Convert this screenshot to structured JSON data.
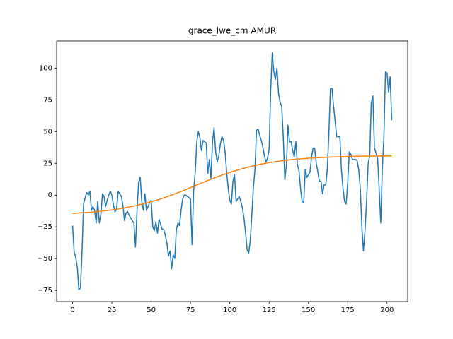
{
  "chart_data": {
    "type": "line",
    "title": "grace_lwe_cm AMUR",
    "xlim": [
      -10.15,
      213.15
    ],
    "ylim": [
      -83.8,
      121.3
    ],
    "xticks": [
      0,
      25,
      50,
      75,
      100,
      125,
      150,
      175,
      200
    ],
    "yticks": [
      {
        "value": -75,
        "label": "−75"
      },
      {
        "value": -50,
        "label": "−50"
      },
      {
        "value": -25,
        "label": "−25"
      },
      0,
      25,
      50,
      75,
      100
    ],
    "grid": false,
    "series": [
      {
        "color": "#1f77b4",
        "values": [
          -24,
          -45,
          -49,
          -57,
          -74.5,
          -73,
          -45,
          -7,
          -2,
          2,
          0,
          3,
          -12,
          -9,
          -12,
          -22,
          -5,
          -22,
          -15,
          1,
          -1,
          -9,
          -4,
          0,
          3,
          0,
          -8,
          -13,
          -11,
          3,
          1,
          -1,
          -8,
          -20,
          -14,
          -13,
          -16,
          -18,
          -20,
          -22,
          -41,
          -12,
          10,
          14,
          -5,
          -12,
          1,
          -12,
          -9,
          -6,
          -4,
          -25,
          -28,
          -21,
          -30,
          -19,
          -23,
          -27,
          -27,
          -32,
          -38,
          -48,
          -44,
          -58,
          -47,
          -50,
          -27,
          -22,
          -24,
          -12,
          -3,
          0,
          0,
          -1,
          -2,
          -3,
          -39,
          4,
          18,
          42,
          50,
          45,
          35,
          43,
          42,
          41,
          17,
          28,
          13,
          42,
          53,
          34,
          26,
          31,
          40,
          46,
          43,
          34,
          18,
          5,
          -4,
          -7,
          11,
          16,
          -5,
          -3,
          -1,
          -5,
          -10,
          -18,
          -29,
          -43,
          -46,
          -36,
          -16,
          6,
          20,
          51,
          52,
          47,
          43,
          38,
          31,
          26,
          29,
          36,
          82,
          112,
          97,
          91,
          100,
          80,
          73,
          70,
          46,
          12,
          23,
          55,
          42,
          42,
          35,
          30,
          42,
          24,
          19,
          5,
          -5,
          -6,
          20,
          14,
          16,
          18,
          30,
          37,
          37,
          25,
          18,
          11,
          11,
          1,
          8,
          8,
          20,
          48,
          84,
          84,
          70,
          58,
          46,
          46,
          46,
          20,
          5,
          -5,
          -7,
          10,
          34,
          32,
          28,
          28,
          28,
          27,
          20,
          5,
          -25,
          -44,
          -28,
          -5,
          25,
          31,
          73,
          78,
          37,
          33,
          29,
          5,
          -22,
          20,
          45,
          97,
          96,
          81,
          93,
          59
        ]
      },
      {
        "color": "#ff7f0e",
        "values": [
          -14.5,
          -14.4,
          -14.3,
          -14.2,
          -14.1,
          -14.0,
          -13.9,
          -13.9,
          -13.8,
          -13.7,
          -13.6,
          -13.5,
          -13.4,
          -13.3,
          -13.2,
          -13.1,
          -12.9,
          -12.8,
          -12.7,
          -12.5,
          -12.4,
          -12.3,
          -12.1,
          -12.0,
          -11.8,
          -11.7,
          -11.5,
          -11.3,
          -11.2,
          -11.0,
          -10.8,
          -10.6,
          -10.3,
          -10.1,
          -9.8,
          -9.6,
          -9.3,
          -9.1,
          -8.8,
          -8.6,
          -8.3,
          -8.0,
          -7.7,
          -7.4,
          -7.2,
          -6.9,
          -6.6,
          -6.2,
          -5.9,
          -5.5,
          -5.2,
          -4.8,
          -4.5,
          -4.1,
          -3.8,
          -3.4,
          -3.0,
          -2.6,
          -2.1,
          -1.7,
          -1.3,
          -0.8,
          -0.4,
          0.1,
          0.5,
          1.0,
          1.5,
          1.9,
          2.4,
          2.8,
          3.3,
          3.8,
          4.4,
          4.9,
          5.4,
          5.9,
          6.4,
          7.0,
          7.5,
          8.0,
          8.5,
          9.0,
          9.5,
          10.0,
          10.5,
          11.0,
          11.5,
          12.0,
          12.4,
          12.9,
          13.4,
          13.9,
          14.4,
          14.8,
          15.3,
          15.8,
          16.2,
          16.6,
          17.0,
          17.4,
          17.8,
          18.2,
          18.6,
          18.9,
          19.3,
          19.7,
          20.1,
          20.4,
          20.8,
          21.1,
          21.5,
          21.8,
          22.1,
          22.4,
          22.7,
          23.0,
          23.3,
          23.6,
          23.8,
          24.1,
          24.4,
          24.6,
          24.8,
          25.1,
          25.3,
          25.5,
          25.7,
          25.9,
          26.1,
          26.3,
          26.5,
          26.7,
          26.8,
          27.0,
          27.1,
          27.3,
          27.4,
          27.6,
          27.7,
          27.9,
          28.0,
          28.1,
          28.2,
          28.3,
          28.4,
          28.5,
          28.6,
          28.7,
          28.8,
          28.9,
          29.0,
          29.1,
          29.1,
          29.2,
          29.2,
          29.3,
          29.4,
          29.5,
          29.5,
          29.6,
          29.7,
          29.7,
          29.8,
          29.8,
          29.9,
          29.9,
          30.0,
          30.0,
          30.1,
          30.1,
          30.2,
          30.2,
          30.3,
          30.3,
          30.4,
          30.4,
          30.4,
          30.4,
          30.5,
          30.5,
          30.5,
          30.5,
          30.5,
          30.6,
          30.6,
          30.6,
          30.6,
          30.6,
          30.7,
          30.7,
          30.7,
          30.7,
          30.7,
          30.8,
          30.8,
          30.8,
          30.8,
          30.8,
          30.8,
          30.8,
          30.8,
          30.8,
          30.8,
          30.8
        ]
      }
    ]
  }
}
